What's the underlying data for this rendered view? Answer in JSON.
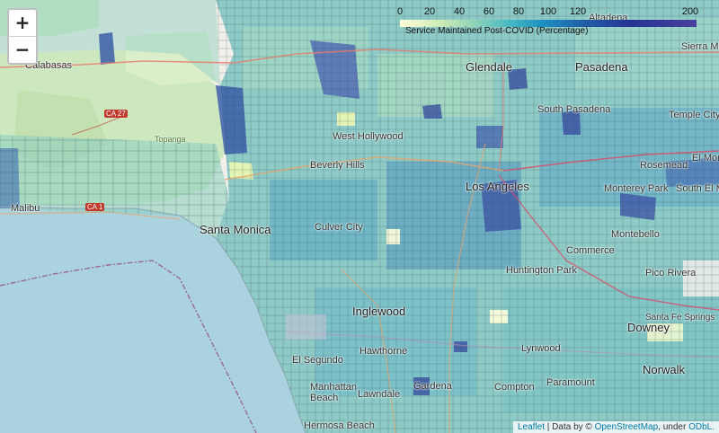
{
  "controls": {
    "zoom_in": "+",
    "zoom_out": "−"
  },
  "legend": {
    "ticks": [
      "0",
      "20",
      "40",
      "60",
      "80",
      "100",
      "120",
      "200"
    ],
    "title": "Service Maintained Post-COVID (Percentage)",
    "colors": [
      "#ffffd9",
      "#c7e9b4",
      "#7fcdbb",
      "#41b6c4",
      "#1d91c0",
      "#225ea8",
      "#253494"
    ]
  },
  "attribution": {
    "leaflet": "Leaflet",
    "sep1": " | Data by © ",
    "osm": "OpenStreetMap",
    "sep2": ", under ",
    "license": "ODbL."
  },
  "places": {
    "calabasas": "Calabasas",
    "glendale": "Glendale",
    "pasadena": "Pasadena",
    "altadena": "Altadena",
    "sierra_madre": "Sierra Madre",
    "west_hollywood": "West Hollywood",
    "beverly_hills": "Beverly Hills",
    "los_angeles": "Los Angeles",
    "santa_monica": "Santa Monica",
    "culver_city": "Culver City",
    "malibu": "Malibu",
    "topanga": "Topanga",
    "monterey_park": "Monterey Park",
    "rosemead": "Rosemead",
    "el_monte": "El Monte",
    "south_el_monte": "South El M",
    "montebello": "Montebello",
    "commerce": "Commerce",
    "huntington_park": "Huntington Park",
    "pico_rivera": "Pico Rivera",
    "inglewood": "Inglewood",
    "hawthorne": "Hawthorne",
    "el_segundo": "El Segundo",
    "manhattan_beach": "Manhattan Beach",
    "lawndale": "Lawndale",
    "gardena": "Gardena",
    "compton": "Compton",
    "lynwood": "Lynwood",
    "paramount": "Paramount",
    "downey": "Downey",
    "norwalk": "Norwalk",
    "santa_fe_springs": "Santa Fe Springs",
    "hermosa_beach": "Hermosa Beach",
    "temple_city": "Temple City",
    "south_pasadena": "South Pasadena"
  },
  "roads": {
    "ca27": "CA 27",
    "ca1": "CA 1"
  }
}
